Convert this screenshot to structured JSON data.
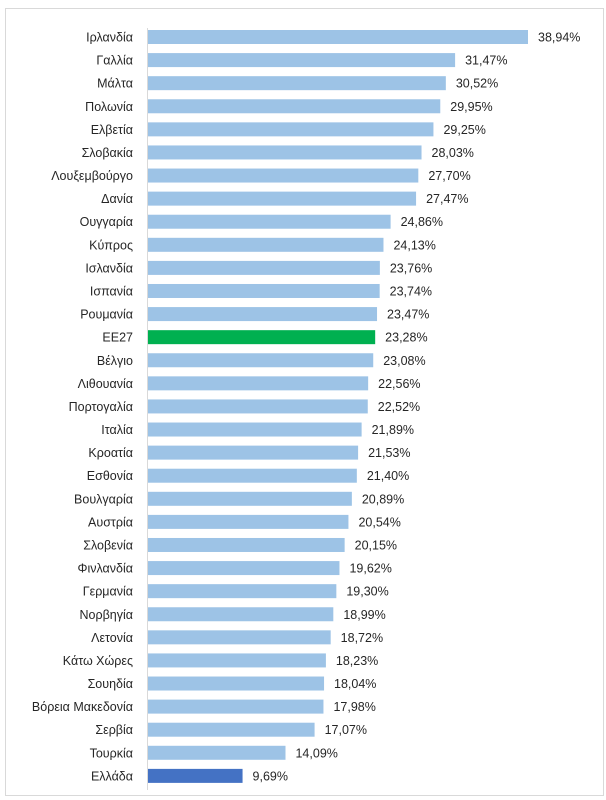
{
  "chart_data": {
    "type": "bar",
    "orientation": "horizontal",
    "categories": [
      "Ιρλανδία",
      "Γαλλία",
      "Μάλτα",
      "Πολωνία",
      "Ελβετία",
      "Σλοβακία",
      "Λουξεμβούργο",
      "Δανία",
      "Ουγγαρία",
      "Κύπρος",
      "Ισλανδία",
      "Ισπανία",
      "Ρουμανία",
      "ΕΕ27",
      "Βέλγιο",
      "Λιθουανία",
      "Πορτογαλία",
      "Ιταλία",
      "Κροατία",
      "Εσθονία",
      "Βουλγαρία",
      "Αυστρία",
      "Σλοβενία",
      "Φινλανδία",
      "Γερμανία",
      "Νορβηγία",
      "Λετονία",
      "Κάτω Χώρες",
      "Σουηδία",
      "Βόρεια Μακεδονία",
      "Σερβία",
      "Τουρκία",
      "Ελλάδα"
    ],
    "values": [
      38.94,
      31.47,
      30.52,
      29.95,
      29.25,
      28.03,
      27.7,
      27.47,
      24.86,
      24.13,
      23.76,
      23.74,
      23.47,
      23.28,
      23.08,
      22.56,
      22.52,
      21.89,
      21.53,
      21.4,
      20.89,
      20.54,
      20.15,
      19.62,
      19.3,
      18.99,
      18.72,
      18.23,
      18.04,
      17.98,
      17.07,
      14.09,
      9.69
    ],
    "value_labels": [
      "38,94%",
      "31,47%",
      "30,52%",
      "29,95%",
      "29,25%",
      "28,03%",
      "27,70%",
      "27,47%",
      "24,86%",
      "24,13%",
      "23,76%",
      "23,74%",
      "23,47%",
      "23,28%",
      "23,08%",
      "22,56%",
      "22,52%",
      "21,89%",
      "21,53%",
      "21,40%",
      "20,89%",
      "20,54%",
      "20,15%",
      "19,62%",
      "19,30%",
      "18,99%",
      "18,72%",
      "18,23%",
      "18,04%",
      "17,98%",
      "17,07%",
      "14,09%",
      "9,69%"
    ],
    "unit": "%",
    "xlim": [
      0,
      40
    ],
    "grid": false,
    "legend": "none",
    "colors": {
      "default": "#9DC3E6",
      "ΕΕ27": "#00B050",
      "Ελλάδα": "#4472C4"
    }
  }
}
